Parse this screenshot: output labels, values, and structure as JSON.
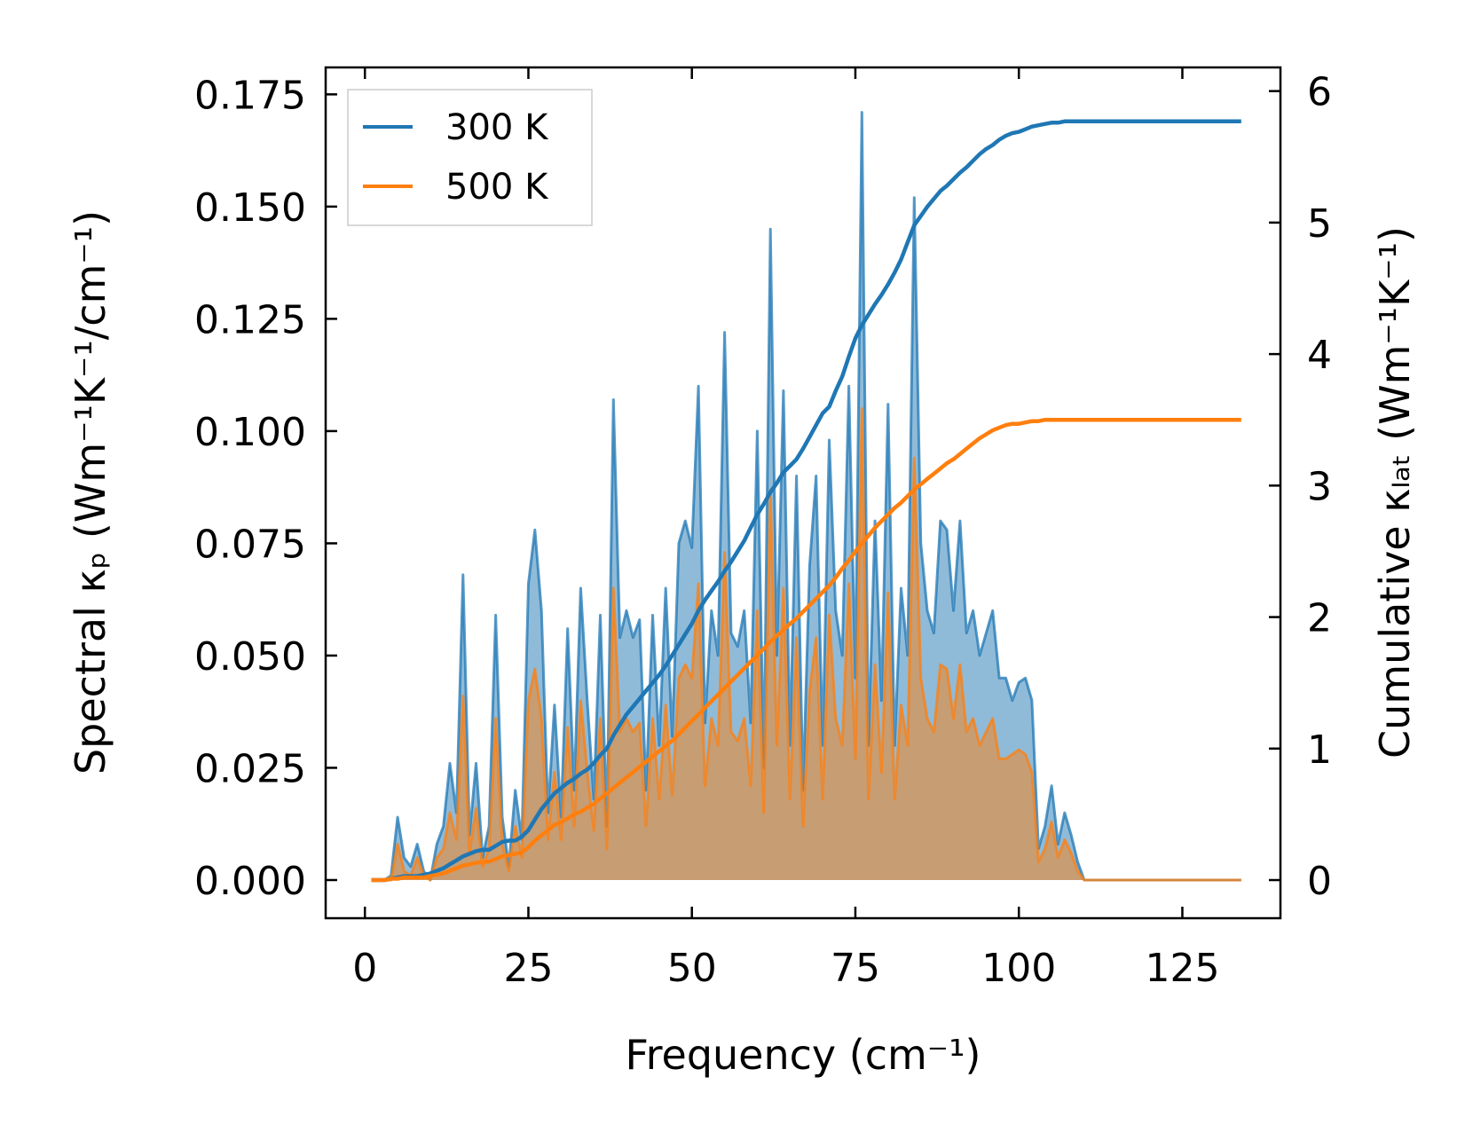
{
  "chart_data": {
    "type": "line",
    "xlabel": "Frequency (cm⁻¹)",
    "ylabel_left": "Spectral κₚ (Wm⁻¹K⁻¹/cm⁻¹)",
    "ylabel_right": "Cumulative κₗₐₜ (Wm⁻¹K⁻¹)",
    "xlim": [
      -6,
      140
    ],
    "ylim_left": [
      -0.0085,
      0.181
    ],
    "ylim_right": [
      -0.29,
      6.18
    ],
    "xticks": [
      0,
      25,
      50,
      75,
      100,
      125
    ],
    "xtick_labels": [
      "0",
      "25",
      "50",
      "75",
      "100",
      "125"
    ],
    "yticks_left": [
      0,
      0.025,
      0.05,
      0.075,
      0.1,
      0.125,
      0.15,
      0.175
    ],
    "ytick_labels_left": [
      "0.000",
      "0.025",
      "0.050",
      "0.075",
      "0.100",
      "0.125",
      "0.150",
      "0.175"
    ],
    "yticks_right": [
      0,
      1,
      2,
      3,
      4,
      5,
      6
    ],
    "ytick_labels_right": [
      "0",
      "1",
      "2",
      "3",
      "4",
      "5",
      "6"
    ],
    "legend": {
      "position": "top-left",
      "entries": [
        "300 K",
        "500 K"
      ]
    },
    "colors": {
      "series_300K": "#1f77b4",
      "series_500K": "#ff7f0e",
      "axes": "#000000",
      "legend_border": "#cccccc"
    },
    "x": [
      1,
      2,
      3,
      4,
      5,
      6,
      7,
      8,
      9,
      10,
      11,
      12,
      13,
      14,
      15,
      16,
      17,
      18,
      19,
      20,
      21,
      22,
      23,
      24,
      25,
      26,
      27,
      28,
      29,
      30,
      31,
      32,
      33,
      34,
      35,
      36,
      37,
      38,
      39,
      40,
      41,
      42,
      43,
      44,
      45,
      46,
      47,
      48,
      49,
      50,
      51,
      52,
      53,
      54,
      55,
      56,
      57,
      58,
      59,
      60,
      61,
      62,
      63,
      64,
      65,
      66,
      67,
      68,
      69,
      70,
      71,
      72,
      73,
      74,
      75,
      76,
      77,
      78,
      79,
      80,
      81,
      82,
      83,
      84,
      85,
      86,
      87,
      88,
      89,
      90,
      91,
      92,
      93,
      94,
      95,
      96,
      97,
      98,
      99,
      100,
      101,
      102,
      103,
      104,
      105,
      106,
      107,
      108,
      109,
      110,
      111,
      112,
      113,
      114,
      115,
      116,
      117,
      118,
      119,
      120,
      121,
      122,
      123,
      124,
      125,
      126,
      127,
      128,
      129,
      130,
      131,
      132,
      133,
      134
    ],
    "series": [
      {
        "name": "300 K",
        "spectral": [
          0,
          0,
          0,
          0.001,
          0.014,
          0.005,
          0.003,
          0.008,
          0.002,
          0,
          0.008,
          0.012,
          0.026,
          0.015,
          0.068,
          0.01,
          0.026,
          0.005,
          0.012,
          0.059,
          0.014,
          0.003,
          0.02,
          0.009,
          0.066,
          0.078,
          0.06,
          0.015,
          0.039,
          0.014,
          0.056,
          0.02,
          0.065,
          0.04,
          0.018,
          0.059,
          0.012,
          0.107,
          0.054,
          0.06,
          0.054,
          0.058,
          0.02,
          0.059,
          0.03,
          0.065,
          0.032,
          0.075,
          0.08,
          0.074,
          0.11,
          0.035,
          0.06,
          0.05,
          0.122,
          0.055,
          0.052,
          0.06,
          0.035,
          0.1,
          0.025,
          0.145,
          0.05,
          0.109,
          0.03,
          0.09,
          0.02,
          0.07,
          0.09,
          0.03,
          0.098,
          0.06,
          0.05,
          0.11,
          0.045,
          0.171,
          0.03,
          0.08,
          0.04,
          0.106,
          0.03,
          0.065,
          0.05,
          0.152,
          0.075,
          0.06,
          0.055,
          0.08,
          0.078,
          0.06,
          0.08,
          0.055,
          0.06,
          0.05,
          0.055,
          0.06,
          0.045,
          0.045,
          0.04,
          0.044,
          0.045,
          0.04,
          0.007,
          0.012,
          0.021,
          0.008,
          0.015,
          0.01,
          0.004,
          0,
          0,
          0,
          0,
          0,
          0,
          0,
          0,
          0,
          0,
          0,
          0,
          0,
          0,
          0,
          0,
          0,
          0,
          0,
          0,
          0,
          0,
          0,
          0,
          0
        ],
        "cumulative": [
          0,
          0,
          0,
          0.01,
          0.02,
          0.03,
          0.03,
          0.03,
          0.04,
          0.05,
          0.07,
          0.09,
          0.12,
          0.15,
          0.18,
          0.2,
          0.22,
          0.23,
          0.23,
          0.26,
          0.29,
          0.3,
          0.3,
          0.33,
          0.38,
          0.46,
          0.54,
          0.6,
          0.66,
          0.7,
          0.74,
          0.77,
          0.81,
          0.84,
          0.89,
          0.95,
          1.0,
          1.1,
          1.18,
          1.26,
          1.32,
          1.38,
          1.44,
          1.5,
          1.56,
          1.63,
          1.71,
          1.79,
          1.87,
          1.95,
          2.05,
          2.13,
          2.2,
          2.27,
          2.35,
          2.42,
          2.5,
          2.58,
          2.68,
          2.78,
          2.86,
          2.95,
          3.02,
          3.1,
          3.15,
          3.2,
          3.28,
          3.37,
          3.46,
          3.55,
          3.6,
          3.72,
          3.83,
          3.98,
          4.12,
          4.22,
          4.3,
          4.38,
          4.45,
          4.53,
          4.62,
          4.72,
          4.85,
          4.98,
          5.05,
          5.12,
          5.18,
          5.24,
          5.28,
          5.33,
          5.38,
          5.42,
          5.47,
          5.52,
          5.56,
          5.59,
          5.63,
          5.66,
          5.68,
          5.69,
          5.71,
          5.73,
          5.74,
          5.75,
          5.76,
          5.76,
          5.77,
          5.77,
          5.77,
          5.77,
          5.77,
          5.77,
          5.77,
          5.77,
          5.77,
          5.77,
          5.77,
          5.77,
          5.77,
          5.77,
          5.77,
          5.77,
          5.77,
          5.77,
          5.77,
          5.77,
          5.77,
          5.77,
          5.77,
          5.77,
          5.77,
          5.77,
          5.77,
          5.77
        ]
      },
      {
        "name": "500 K",
        "spectral": [
          0,
          0,
          0,
          0,
          0.008,
          0.002,
          0.001,
          0.005,
          0.001,
          0,
          0.005,
          0.007,
          0.015,
          0.009,
          0.041,
          0.006,
          0.016,
          0.003,
          0.007,
          0.036,
          0.008,
          0.002,
          0.012,
          0.005,
          0.04,
          0.047,
          0.036,
          0.009,
          0.024,
          0.009,
          0.034,
          0.012,
          0.04,
          0.024,
          0.011,
          0.036,
          0.007,
          0.065,
          0.033,
          0.036,
          0.033,
          0.035,
          0.012,
          0.036,
          0.018,
          0.039,
          0.019,
          0.045,
          0.048,
          0.045,
          0.066,
          0.021,
          0.036,
          0.03,
          0.073,
          0.033,
          0.031,
          0.036,
          0.021,
          0.06,
          0.015,
          0.087,
          0.03,
          0.065,
          0.018,
          0.054,
          0.012,
          0.042,
          0.054,
          0.018,
          0.059,
          0.036,
          0.03,
          0.066,
          0.027,
          0.105,
          0.018,
          0.048,
          0.024,
          0.064,
          0.018,
          0.039,
          0.03,
          0.094,
          0.045,
          0.036,
          0.033,
          0.048,
          0.047,
          0.036,
          0.048,
          0.033,
          0.036,
          0.03,
          0.033,
          0.036,
          0.027,
          0.027,
          0.028,
          0.029,
          0.028,
          0.024,
          0.004,
          0.007,
          0.013,
          0.005,
          0.009,
          0.006,
          0.002,
          0,
          0,
          0,
          0,
          0,
          0,
          0,
          0,
          0,
          0,
          0,
          0,
          0,
          0,
          0,
          0,
          0,
          0,
          0,
          0,
          0,
          0,
          0,
          0,
          0
        ],
        "cumulative": [
          0,
          0,
          0,
          0.01,
          0.01,
          0.02,
          0.02,
          0.02,
          0.02,
          0.03,
          0.04,
          0.05,
          0.07,
          0.09,
          0.11,
          0.12,
          0.13,
          0.14,
          0.14,
          0.16,
          0.18,
          0.19,
          0.2,
          0.21,
          0.25,
          0.3,
          0.34,
          0.38,
          0.42,
          0.44,
          0.47,
          0.5,
          0.52,
          0.55,
          0.58,
          0.62,
          0.66,
          0.7,
          0.74,
          0.78,
          0.82,
          0.86,
          0.9,
          0.94,
          0.98,
          1.02,
          1.06,
          1.11,
          1.16,
          1.21,
          1.26,
          1.31,
          1.36,
          1.41,
          1.46,
          1.51,
          1.56,
          1.61,
          1.66,
          1.71,
          1.76,
          1.81,
          1.86,
          1.9,
          1.95,
          1.99,
          2.04,
          2.09,
          2.14,
          2.19,
          2.24,
          2.3,
          2.37,
          2.43,
          2.5,
          2.56,
          2.62,
          2.68,
          2.73,
          2.78,
          2.83,
          2.87,
          2.92,
          2.97,
          3.01,
          3.05,
          3.09,
          3.13,
          3.17,
          3.2,
          3.24,
          3.28,
          3.32,
          3.36,
          3.39,
          3.42,
          3.44,
          3.46,
          3.47,
          3.47,
          3.48,
          3.49,
          3.49,
          3.5,
          3.5,
          3.5,
          3.5,
          3.5,
          3.5,
          3.5,
          3.5,
          3.5,
          3.5,
          3.5,
          3.5,
          3.5,
          3.5,
          3.5,
          3.5,
          3.5,
          3.5,
          3.5,
          3.5,
          3.5,
          3.5,
          3.5,
          3.5,
          3.5,
          3.5,
          3.5,
          3.5,
          3.5,
          3.5,
          3.5
        ]
      }
    ]
  }
}
